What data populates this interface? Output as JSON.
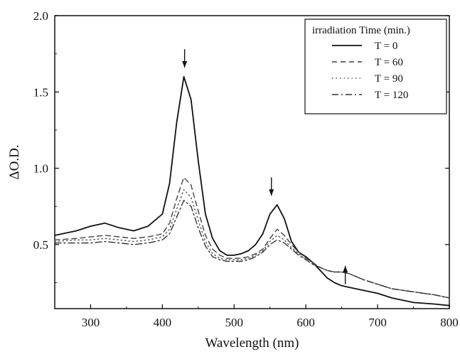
{
  "chart_data": {
    "type": "line",
    "xlabel": "Wavelength (nm)",
    "ylabel": "ΔO.D.",
    "xlim": [
      250,
      800
    ],
    "ylim": [
      0.08,
      2.0
    ],
    "x_ticks": [
      300,
      400,
      500,
      600,
      700,
      800
    ],
    "x_tick_labels": [
      "300",
      "400",
      "500",
      "600",
      "700",
      "800"
    ],
    "y_ticks": [
      0.5,
      1.0,
      1.5,
      2.0
    ],
    "y_tick_labels": [
      "0.5",
      "1.0",
      "1.5",
      "2.0"
    ],
    "grid": false,
    "legend": {
      "title": "irradiation Time (min.)",
      "placement": "top-right"
    },
    "x": [
      250,
      280,
      300,
      320,
      340,
      360,
      380,
      400,
      410,
      420,
      430,
      440,
      450,
      460,
      470,
      480,
      490,
      500,
      510,
      520,
      530,
      540,
      550,
      560,
      570,
      580,
      590,
      600,
      610,
      620,
      630,
      640,
      650,
      660,
      670,
      680,
      700,
      720,
      750,
      780,
      800
    ],
    "series": [
      {
        "name": "T = 0",
        "dash": "solid",
        "color": "#111111",
        "values": [
          0.56,
          0.59,
          0.62,
          0.64,
          0.61,
          0.59,
          0.62,
          0.7,
          0.9,
          1.3,
          1.6,
          1.45,
          1.05,
          0.7,
          0.54,
          0.46,
          0.43,
          0.43,
          0.44,
          0.46,
          0.5,
          0.57,
          0.7,
          0.76,
          0.67,
          0.52,
          0.45,
          0.42,
          0.38,
          0.33,
          0.28,
          0.25,
          0.23,
          0.22,
          0.21,
          0.2,
          0.18,
          0.15,
          0.12,
          0.11,
          0.1
        ]
      },
      {
        "name": "T = 60",
        "dash": "dashed",
        "color": "#444444",
        "values": [
          0.53,
          0.54,
          0.55,
          0.56,
          0.55,
          0.54,
          0.55,
          0.57,
          0.64,
          0.8,
          0.94,
          0.89,
          0.72,
          0.56,
          0.47,
          0.43,
          0.41,
          0.41,
          0.41,
          0.42,
          0.44,
          0.47,
          0.54,
          0.6,
          0.56,
          0.5,
          0.45,
          0.41,
          0.38,
          0.35,
          0.33,
          0.32,
          0.32,
          0.31,
          0.29,
          0.27,
          0.24,
          0.21,
          0.19,
          0.17,
          0.15
        ]
      },
      {
        "name": "T = 90",
        "dash": "dotted",
        "color": "#555555",
        "values": [
          0.52,
          0.53,
          0.53,
          0.54,
          0.53,
          0.52,
          0.53,
          0.55,
          0.6,
          0.73,
          0.86,
          0.81,
          0.66,
          0.52,
          0.44,
          0.41,
          0.4,
          0.4,
          0.4,
          0.41,
          0.43,
          0.46,
          0.52,
          0.56,
          0.53,
          0.48,
          0.44,
          0.4,
          0.37,
          0.35,
          0.33,
          0.32,
          0.32,
          0.31,
          0.29,
          0.27,
          0.24,
          0.21,
          0.19,
          0.17,
          0.15
        ]
      },
      {
        "name": "T = 120",
        "dash": "dashdot",
        "color": "#333333",
        "values": [
          0.51,
          0.51,
          0.51,
          0.52,
          0.51,
          0.5,
          0.51,
          0.53,
          0.57,
          0.68,
          0.79,
          0.75,
          0.61,
          0.49,
          0.42,
          0.4,
          0.39,
          0.39,
          0.39,
          0.4,
          0.42,
          0.45,
          0.5,
          0.53,
          0.51,
          0.47,
          0.43,
          0.4,
          0.37,
          0.35,
          0.33,
          0.32,
          0.32,
          0.31,
          0.29,
          0.27,
          0.24,
          0.21,
          0.19,
          0.17,
          0.15
        ]
      }
    ],
    "annotations": [
      {
        "type": "arrow",
        "direction": "down",
        "x": 431,
        "y_tail": 1.78,
        "y_head": 1.66
      },
      {
        "type": "arrow",
        "direction": "down",
        "x": 552,
        "y_tail": 0.94,
        "y_head": 0.82
      },
      {
        "type": "arrow",
        "direction": "up",
        "x": 655,
        "y_tail": 0.24,
        "y_head": 0.36
      }
    ]
  }
}
